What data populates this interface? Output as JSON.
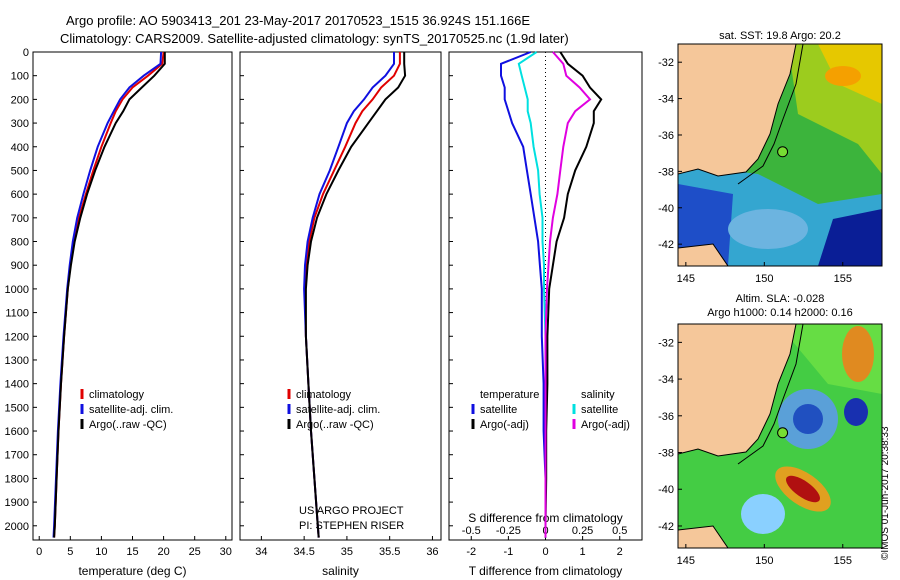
{
  "header": {
    "line1": "Argo profile: AO 5903413_201 23-May-2017 20170523_1515 36.924S 151.166E",
    "line2": "Climatology: CARS2009. Satellite-adjusted climatology: synTS_20170525.nc (1.9d later)"
  },
  "stamp": "©IMOS 01-Jun-2017 20:38:33",
  "colors": {
    "red": "#e00000",
    "blue": "#1010e0",
    "black": "#000000",
    "cyan": "#00e0e0",
    "magenta": "#e000e0",
    "land": "#f5c79a"
  },
  "chart_data": [
    {
      "type": "line",
      "name": "temperature-profile",
      "xlabel": "temperature (deg C)",
      "xlim": [
        -1,
        31
      ],
      "ylim": [
        2060,
        0
      ],
      "xticks": [
        0,
        5,
        10,
        15,
        20,
        25,
        30
      ],
      "yticks": [
        0,
        100,
        200,
        300,
        400,
        500,
        600,
        700,
        800,
        900,
        1000,
        1100,
        1200,
        1300,
        1400,
        1500,
        1600,
        1700,
        1800,
        1900,
        2000
      ],
      "depth": [
        0,
        50,
        100,
        150,
        200,
        250,
        300,
        400,
        500,
        600,
        700,
        800,
        900,
        1000,
        1200,
        1400,
        1600,
        1800,
        2000,
        2050
      ],
      "series": [
        {
          "name": "climatology",
          "color": "red",
          "values": [
            20,
            19.8,
            17.5,
            15,
            13.4,
            12.3,
            11.5,
            10,
            8.7,
            7.5,
            6.4,
            5.6,
            5,
            4.6,
            4,
            3.5,
            3.1,
            2.8,
            2.5,
            2.4
          ]
        },
        {
          "name": "satellite-adj. clim.",
          "color": "blue",
          "values": [
            19.6,
            19.5,
            16.8,
            14.5,
            13,
            12,
            11,
            9.4,
            8.2,
            7.1,
            6.1,
            5.4,
            4.9,
            4.5,
            3.9,
            3.4,
            3,
            2.7,
            2.4,
            2.3
          ]
        },
        {
          "name": "Argo(..raw -QC)",
          "color": "black",
          "values": [
            20.2,
            20.2,
            18.5,
            16.5,
            14.5,
            13.5,
            12.3,
            10.5,
            9,
            7.7,
            6.6,
            5.7,
            5.1,
            4.6,
            4,
            3.5,
            3.1,
            2.8,
            2.5,
            2.4
          ]
        }
      ],
      "legend": [
        "climatology",
        "satellite-adj. clim.",
        "Argo(..raw -QC)"
      ]
    },
    {
      "type": "line",
      "name": "salinity-profile",
      "xlabel": "salinity",
      "xlim": [
        33.75,
        36.1
      ],
      "ylim": [
        2060,
        0
      ],
      "xticks": [
        34,
        34.5,
        35,
        35.5,
        36
      ],
      "depth": [
        0,
        50,
        100,
        150,
        200,
        250,
        300,
        400,
        500,
        600,
        700,
        800,
        900,
        1000,
        1200,
        1400,
        1600,
        1800,
        2000,
        2050
      ],
      "series": [
        {
          "name": "climatology",
          "color": "red",
          "values": [
            35.62,
            35.62,
            35.55,
            35.4,
            35.3,
            35.18,
            35.1,
            34.98,
            34.85,
            34.72,
            34.62,
            34.56,
            34.52,
            34.51,
            34.52,
            34.55,
            34.58,
            34.62,
            34.66,
            34.67
          ]
        },
        {
          "name": "satellite-adj. clim.",
          "color": "blue",
          "values": [
            35.55,
            35.55,
            35.45,
            35.3,
            35.2,
            35.08,
            35,
            34.9,
            34.8,
            34.68,
            34.6,
            34.54,
            34.51,
            34.5,
            34.52,
            34.55,
            34.58,
            34.62,
            34.66,
            34.67
          ]
        },
        {
          "name": "Argo(..raw -QC)",
          "color": "black",
          "values": [
            35.67,
            35.67,
            35.68,
            35.6,
            35.45,
            35.35,
            35.25,
            35.05,
            34.9,
            34.76,
            34.65,
            34.58,
            34.54,
            34.52,
            34.52,
            34.55,
            34.58,
            34.62,
            34.66,
            34.67
          ]
        }
      ],
      "legend": [
        "climatology",
        "satellite-adj. clim.",
        "Argo(..raw -QC)"
      ],
      "annotation": [
        "US ARGO PROJECT",
        "PI: STEPHEN RISER"
      ]
    },
    {
      "type": "line",
      "name": "difference-profile",
      "xlabel": "T difference from climatology",
      "xlabel_top": "S difference from climatology",
      "xlim": [
        -2.6,
        2.6
      ],
      "ylim": [
        2060,
        0
      ],
      "xticks": [
        -2,
        -1,
        0,
        1,
        2
      ],
      "s_xlim": [
        -0.65,
        0.65
      ],
      "s_xticks": [
        -0.5,
        -0.25,
        0,
        0.25,
        0.5
      ],
      "depth": [
        0,
        50,
        100,
        150,
        200,
        250,
        300,
        400,
        500,
        600,
        700,
        800,
        900,
        1000,
        1200,
        1400,
        1600,
        1800,
        2000,
        2050
      ],
      "series": [
        {
          "name": "temperature satellite",
          "color": "blue",
          "values": [
            -0.4,
            -1.2,
            -1.2,
            -1.1,
            -1.1,
            -1.0,
            -0.9,
            -0.6,
            -0.5,
            -0.4,
            -0.3,
            -0.2,
            -0.15,
            -0.1,
            -0.1,
            -0.05,
            -0.05,
            0,
            0,
            0
          ]
        },
        {
          "name": "temperature Argo(-adj)",
          "color": "black",
          "values": [
            0.4,
            0.6,
            1.0,
            1.2,
            1.5,
            1.3,
            1.3,
            1.1,
            0.8,
            0.6,
            0.5,
            0.3,
            0.2,
            0.1,
            0.05,
            0.05,
            0.02,
            0.02,
            0.0,
            0.0
          ]
        },
        {
          "name": "salinity satellite",
          "color": "cyan",
          "values": [
            -0.06,
            -0.18,
            -0.16,
            -0.14,
            -0.12,
            -0.12,
            -0.1,
            -0.08,
            -0.05,
            -0.04,
            -0.02,
            -0.02,
            -0.01,
            -0.01,
            0,
            0,
            0,
            0,
            0,
            0
          ]
        },
        {
          "name": "salinity Argo(-adj)",
          "color": "magenta",
          "values": [
            0.05,
            0.12,
            0.14,
            0.23,
            0.3,
            0.2,
            0.15,
            0.12,
            0.1,
            0.08,
            0.05,
            0.03,
            0.02,
            0.01,
            0,
            0,
            0,
            0,
            0,
            0
          ]
        }
      ],
      "legend": {
        "temperature": [
          "satellite",
          "Argo(-adj)"
        ],
        "salinity": [
          "satellite",
          "Argo(-adj)"
        ]
      },
      "legend_titles": [
        "temperature",
        "salinity"
      ]
    }
  ],
  "maps": [
    {
      "type": "heatmap",
      "name": "sst-map",
      "title": "sat. SST: 19.8 Argo: 20.2",
      "xlim": [
        144.5,
        157.5
      ],
      "ylim": [
        -43.2,
        -31
      ],
      "xticks": [
        145,
        150,
        155
      ],
      "yticks": [
        -32,
        -34,
        -36,
        -38,
        -40,
        -42
      ],
      "argo_marker": [
        151.166,
        -36.924
      ]
    },
    {
      "type": "heatmap",
      "name": "sla-map",
      "title_line1": "Altim. SLA: -0.028",
      "title_line2": "Argo h1000: 0.14 h2000: 0.16",
      "xlim": [
        144.5,
        157.5
      ],
      "ylim": [
        -43.2,
        -31
      ],
      "xticks": [
        145,
        150,
        155
      ],
      "yticks": [
        -32,
        -34,
        -36,
        -38,
        -40,
        -42
      ],
      "argo_marker": [
        151.166,
        -36.924
      ]
    }
  ]
}
